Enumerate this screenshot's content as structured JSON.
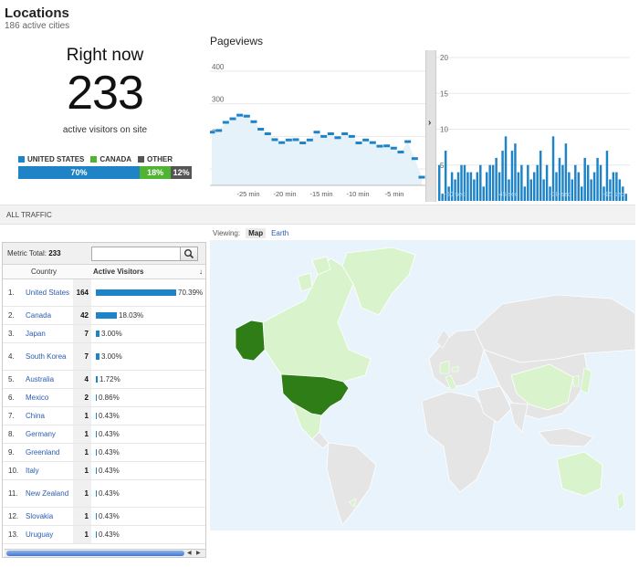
{
  "header": {
    "title": "Locations",
    "subtitle": "186 active cities"
  },
  "right_now": {
    "title": "Right now",
    "count": "233",
    "label": "active visitors on site",
    "legend": [
      {
        "label": "UNITED STATES",
        "color": "#1f83c7"
      },
      {
        "label": "CANADA",
        "color": "#50b432"
      },
      {
        "label": "OTHER",
        "color": "#555555"
      }
    ],
    "segments": [
      {
        "label": "70%",
        "value": 70,
        "color": "#1f83c7"
      },
      {
        "label": "18%",
        "value": 18,
        "color": "#50b432"
      },
      {
        "label": "12%",
        "value": 12,
        "color": "#555555"
      }
    ]
  },
  "pageviews": {
    "title": "Pageviews",
    "chart_data": [
      {
        "type": "line",
        "ylim": [
          50,
          450
        ],
        "yticks": [
          "100",
          "200",
          "300",
          "400"
        ],
        "xticks": [
          "-25 min",
          "-20 min",
          "-15 min",
          "-10 min",
          "-5 min"
        ],
        "series": [
          {
            "values": [
              213,
              218,
              243,
              254,
              265,
              262,
              245,
              222,
              208,
              190,
              181,
              189,
              190,
              180,
              189,
              213,
              200,
              208,
              196,
              208,
              200,
              180,
              189,
              181,
              170,
              171,
              164,
              152,
              184,
              132,
              75
            ]
          }
        ]
      },
      {
        "type": "bar",
        "ylim": [
          0,
          20
        ],
        "yticks": [
          "5",
          "10",
          "15",
          "20"
        ],
        "xticks": [
          "-60 sec",
          "-45 sec",
          "-30 sec",
          "-15 sec"
        ],
        "values": [
          5,
          1,
          7,
          2,
          4,
          3,
          4,
          5,
          5,
          4,
          4,
          3,
          4,
          5,
          2,
          4,
          5,
          5,
          6,
          4,
          7,
          9,
          3,
          7,
          8,
          4,
          5,
          2,
          5,
          3,
          4,
          5,
          7,
          3,
          5,
          2,
          9,
          4,
          6,
          5,
          8,
          4,
          3,
          5,
          4,
          2,
          6,
          5,
          3,
          4,
          6,
          5,
          2,
          7,
          3,
          4,
          4,
          3,
          2,
          1
        ]
      }
    ]
  },
  "traffic_label": "ALL TRAFFIC",
  "viewing": {
    "label": "Viewing:",
    "map": "Map",
    "earth": "Earth"
  },
  "table": {
    "metric_label": "Metric Total:",
    "metric_total": "233",
    "col_country": "Country",
    "col_visitors": "Active Visitors",
    "sort_icon": "↓",
    "rows": [
      {
        "n": "1.",
        "country": "United States",
        "count": "164",
        "pct": "70.39%",
        "frac": 0.7039,
        "lines": 2
      },
      {
        "n": "2.",
        "country": "Canada",
        "count": "42",
        "pct": "18.03%",
        "frac": 0.1803,
        "lines": 1
      },
      {
        "n": "3.",
        "country": "Japan",
        "count": "7",
        "pct": "3.00%",
        "frac": 0.03,
        "lines": 1
      },
      {
        "n": "4.",
        "country": "South Korea",
        "count": "7",
        "pct": "3.00%",
        "frac": 0.03,
        "lines": 2
      },
      {
        "n": "5.",
        "country": "Australia",
        "count": "4",
        "pct": "1.72%",
        "frac": 0.0172,
        "lines": 1
      },
      {
        "n": "6.",
        "country": "Mexico",
        "count": "2",
        "pct": "0.86%",
        "frac": 0.0086,
        "lines": 1
      },
      {
        "n": "7.",
        "country": "China",
        "count": "1",
        "pct": "0.43%",
        "frac": 0.0043,
        "lines": 1
      },
      {
        "n": "8.",
        "country": "Germany",
        "count": "1",
        "pct": "0.43%",
        "frac": 0.0043,
        "lines": 1
      },
      {
        "n": "9.",
        "country": "Greenland",
        "count": "1",
        "pct": "0.43%",
        "frac": 0.0043,
        "lines": 1
      },
      {
        "n": "10.",
        "country": "Italy",
        "count": "1",
        "pct": "0.43%",
        "frac": 0.0043,
        "lines": 1
      },
      {
        "n": "11.",
        "country": "New Zealand",
        "count": "1",
        "pct": "0.43%",
        "frac": 0.0043,
        "lines": 2
      },
      {
        "n": "12.",
        "country": "Slovakia",
        "count": "1",
        "pct": "0.43%",
        "frac": 0.0043,
        "lines": 1
      },
      {
        "n": "13.",
        "country": "Uruguay",
        "count": "1",
        "pct": "0.43%",
        "frac": 0.0043,
        "lines": 1
      }
    ]
  },
  "colors": {
    "accent_blue": "#1f83c7",
    "green": "#50b432",
    "map_dark": "#2e7d17",
    "map_mid": "#97d87c",
    "map_light": "#d9f3cc",
    "map_none": "#e5e5e5",
    "water": "#e8f3fb"
  }
}
